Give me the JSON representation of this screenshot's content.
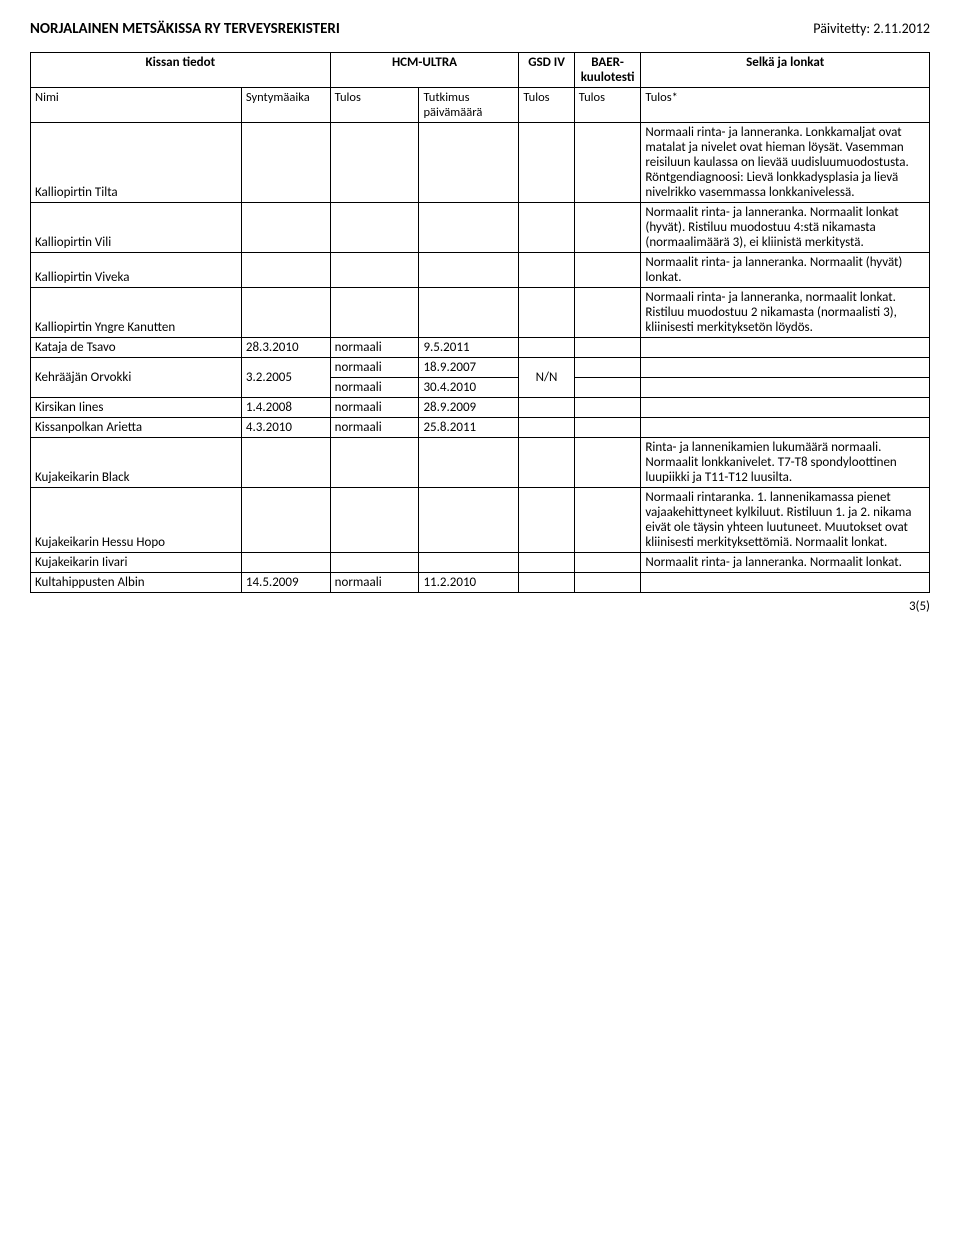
{
  "header": {
    "title": "NORJALAINEN METSÄKISSA RY TERVEYSREKISTERI",
    "updated_label": "Päivitetty:",
    "updated_date": "2.11.2012"
  },
  "columns": {
    "group1_title": "Kissan tiedot",
    "group2_title": "HCM-ULTRA",
    "group3_title": "GSD IV",
    "group4_title": "BAER-kuulotesti",
    "group5_title": "Selkä ja lonkat",
    "sub_name": "Nimi",
    "sub_birth": "Syntymäaika",
    "sub_res": "Tulos",
    "sub_tutkimus": "Tutkimus päivämäärä",
    "sub_tulos": "Tulos",
    "sub_tulos2": "Tulos",
    "sub_tulos_star": "Tulos*"
  },
  "rows": [
    {
      "name": "Kalliopirtin Tilta",
      "selka": "Normaali rinta- ja lanneranka. Lonkkamaljat ovat matalat ja nivelet ovat hieman löysät. Vasemman reisiluun kaulassa on lievää uudisluumuodostusta. Röntgendiagnoosi: Lievä lonkkadysplasia ja lievä nivelrikko vasemmassa lonkkanivelessä."
    },
    {
      "name": "Kalliopirtin Vili",
      "selka": "Normaalit rinta- ja lanneranka. Normaalit lonkat (hyvät). Ristiluu muodostuu 4:stä nikamasta (normaalimäärä 3), ei kliinistä merkitystä."
    },
    {
      "name": "Kalliopirtin Viveka",
      "selka": "Normaalit rinta- ja lanneranka. Normaalit (hyvät) lonkat."
    },
    {
      "name": "Kalliopirtin Yngre Kanutten",
      "selka": "Normaali rinta- ja lanneranka, normaalit lonkat. Ristiluu muodostuu 2 nikamasta (normaalisti 3), kliinisesti merkityksetön löydös."
    },
    {
      "name": "Kataja de Tsavo",
      "birth": "28.3.2010",
      "res": "normaali",
      "date": "9.5.2011"
    },
    {
      "name": "Kehrääjän Orvokki",
      "birth": "3.2.2005",
      "res": "normaali",
      "date": "18.9.2007",
      "gsd": "N/N",
      "row2_res": "normaali",
      "row2_date": "30.4.2010"
    },
    {
      "name": "Kirsikan Iines",
      "birth": "1.4.2008",
      "res": "normaali",
      "date": "28.9.2009"
    },
    {
      "name": "Kissanpolkan Arietta",
      "birth": "4.3.2010",
      "res": "normaali",
      "date": "25.8.2011"
    },
    {
      "name": "Kujakeikarin Black",
      "selka": "Rinta- ja lannenikamien lukumäärä normaali. Normaalit lonkkanivelet. T7-T8 spondyloottinen luupiikki ja T11-T12 luusilta."
    },
    {
      "name": "Kujakeikarin Hessu Hopo",
      "selka": "Normaali rintaranka. 1. lannenikamassa pienet vajaakehittyneet kylkiluut. Ristiluun 1. ja 2. nikama eivät ole täysin yhteen luutuneet. Muutokset ovat kliinisesti merkityksettömiä. Normaalit lonkat."
    },
    {
      "name": "Kujakeikarin Iivari",
      "selka": "Normaalit rinta- ja lanneranka. Normaalit lonkat."
    },
    {
      "name": "Kultahippusten Albin",
      "birth": "14.5.2009",
      "res": "normaali",
      "date": "11.2.2010"
    }
  ],
  "footer": {
    "page": "3(5)"
  }
}
